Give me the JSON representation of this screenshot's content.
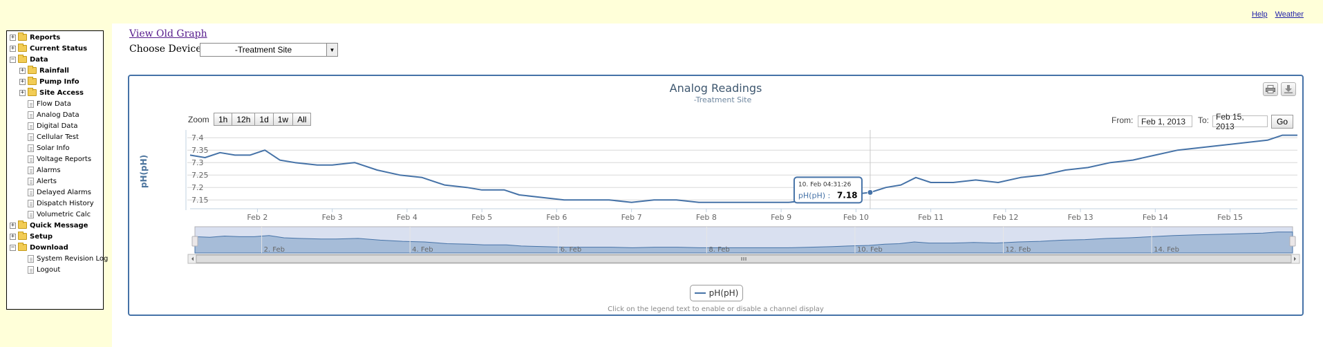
{
  "top_links": {
    "help": "Help",
    "weather": "Weather"
  },
  "tree": {
    "items": [
      {
        "label": "Reports",
        "type": "folder",
        "expander": "+",
        "bold": true,
        "level": 0
      },
      {
        "label": "Current Status",
        "type": "folder",
        "expander": "+",
        "bold": true,
        "level": 0
      },
      {
        "label": "Data",
        "type": "folder",
        "expander": "-",
        "bold": true,
        "level": 0
      },
      {
        "label": "Rainfall",
        "type": "folder",
        "expander": "+",
        "bold": true,
        "level": 1
      },
      {
        "label": "Pump Info",
        "type": "folder",
        "expander": "+",
        "bold": true,
        "level": 1
      },
      {
        "label": "Site Access",
        "type": "folder",
        "expander": "+",
        "bold": true,
        "level": 1
      },
      {
        "label": "Flow Data",
        "type": "doc",
        "bold": false,
        "level": 1
      },
      {
        "label": "Analog Data",
        "type": "doc",
        "bold": false,
        "level": 1
      },
      {
        "label": "Digital Data",
        "type": "doc",
        "bold": false,
        "level": 1
      },
      {
        "label": "Cellular Test",
        "type": "doc",
        "bold": false,
        "level": 1
      },
      {
        "label": "Solar Info",
        "type": "doc",
        "bold": false,
        "level": 1
      },
      {
        "label": "Voltage Reports",
        "type": "doc",
        "bold": false,
        "level": 1
      },
      {
        "label": "Alarms",
        "type": "doc",
        "bold": false,
        "level": 1
      },
      {
        "label": "Alerts",
        "type": "doc",
        "bold": false,
        "level": 1
      },
      {
        "label": "Delayed Alarms",
        "type": "doc",
        "bold": false,
        "level": 1
      },
      {
        "label": "Dispatch History",
        "type": "doc",
        "bold": false,
        "level": 1
      },
      {
        "label": "Volumetric Calc",
        "type": "doc",
        "bold": false,
        "level": 1
      },
      {
        "label": "Quick Message",
        "type": "folder",
        "expander": "+",
        "bold": true,
        "level": 0
      },
      {
        "label": "Setup",
        "type": "folder",
        "expander": "+",
        "bold": true,
        "level": 0
      },
      {
        "label": "Download",
        "type": "folder",
        "expander": "-",
        "bold": true,
        "level": 0
      },
      {
        "label": "System Revision Log",
        "type": "doc",
        "bold": false,
        "level": 1
      },
      {
        "label": "Logout",
        "type": "doc",
        "bold": false,
        "level": 1
      }
    ]
  },
  "header": {
    "view_old_graph": "View Old Graph",
    "choose_device_label": "Choose Device:",
    "device_value": "-Treatment Site"
  },
  "chart_panel": {
    "zoom_label": "Zoom",
    "zoom_buttons": [
      "1h",
      "12h",
      "1d",
      "1w",
      "All"
    ],
    "from_label": "From:",
    "from_value": "Feb 1, 2013",
    "to_label": "To:",
    "to_value": "Feb 15, 2013",
    "go_label": "Go",
    "legend_hint": "Click on the legend text to enable or disable a channel display",
    "tooltip": {
      "date": "10. Feb 04:31:26",
      "series": "pH(pH) :",
      "value": "7.18"
    },
    "navigator_labels": [
      "2. Feb",
      "4. Feb",
      "6. Feb",
      "8. Feb",
      "10. Feb",
      "12. Feb",
      "14. Feb"
    ],
    "icons": [
      "print-icon",
      "download-icon"
    ]
  },
  "chart_data": {
    "type": "line",
    "title": "Analog Readings",
    "subtitle": "-Treatment Site",
    "xlabel": "",
    "ylabel": "pH(pH)",
    "ylim": [
      7.12,
      7.42
    ],
    "y_ticks": [
      7.4,
      7.35,
      7.3,
      7.25,
      7.2,
      7.15
    ],
    "x_ticks": [
      "Feb 2",
      "Feb 3",
      "Feb 4",
      "Feb 5",
      "Feb 6",
      "Feb 7",
      "Feb 8",
      "Feb 9",
      "Feb 10",
      "Feb 11",
      "Feb 12",
      "Feb 13",
      "Feb 14",
      "Feb 15"
    ],
    "x_range_days": [
      1.1,
      15.9
    ],
    "grid": true,
    "legend_placement": "bottom-center",
    "color": "#4572a7",
    "series": [
      {
        "name": "pH(pH)",
        "x": [
          1.1,
          1.3,
          1.5,
          1.7,
          1.9,
          2.1,
          2.3,
          2.5,
          2.8,
          3.0,
          3.3,
          3.6,
          3.9,
          4.2,
          4.5,
          4.8,
          5.0,
          5.3,
          5.5,
          5.8,
          6.1,
          6.4,
          6.7,
          7.0,
          7.3,
          7.6,
          7.9,
          8.2,
          8.5,
          8.8,
          9.1,
          9.4,
          9.7,
          9.9,
          10.19,
          10.4,
          10.6,
          10.8,
          11.0,
          11.3,
          11.6,
          11.9,
          12.2,
          12.5,
          12.8,
          13.1,
          13.4,
          13.7,
          14.0,
          14.3,
          14.6,
          14.9,
          15.2,
          15.5,
          15.7,
          15.9
        ],
        "values": [
          7.33,
          7.32,
          7.34,
          7.33,
          7.33,
          7.35,
          7.31,
          7.3,
          7.29,
          7.29,
          7.3,
          7.27,
          7.25,
          7.24,
          7.21,
          7.2,
          7.19,
          7.19,
          7.17,
          7.16,
          7.15,
          7.15,
          7.15,
          7.14,
          7.15,
          7.15,
          7.14,
          7.14,
          7.14,
          7.14,
          7.14,
          7.15,
          7.16,
          7.17,
          7.18,
          7.2,
          7.21,
          7.24,
          7.22,
          7.22,
          7.23,
          7.22,
          7.24,
          7.25,
          7.27,
          7.28,
          7.3,
          7.31,
          7.33,
          7.35,
          7.36,
          7.37,
          7.38,
          7.39,
          7.41,
          7.41
        ]
      }
    ]
  }
}
